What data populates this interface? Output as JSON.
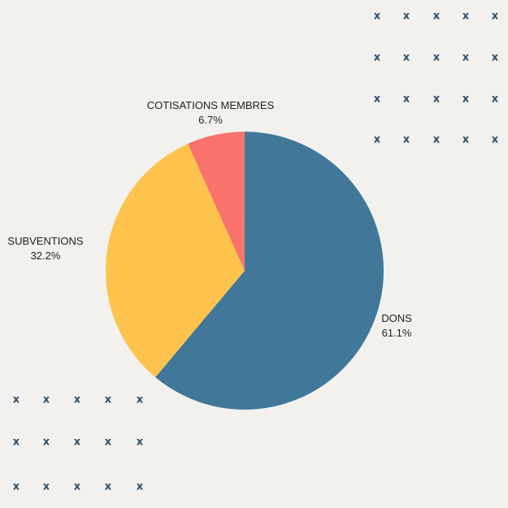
{
  "chart_data": {
    "type": "pie",
    "title": "",
    "start": "12 o'clock",
    "direction": "clockwise",
    "slices": [
      {
        "label": "DONS",
        "percent_label": "61.1%",
        "value": 61.1,
        "color": "#417899"
      },
      {
        "label": "SUBVENTIONS",
        "percent_label": "32.2%",
        "value": 32.2,
        "color": "#fec34c"
      },
      {
        "label": "COTISATIONS MEMBRES",
        "percent_label": "6.7%",
        "value": 6.7,
        "color": "#f8736b"
      }
    ]
  },
  "decoration": {
    "glyph": "x",
    "color": "#2f4f6b"
  }
}
